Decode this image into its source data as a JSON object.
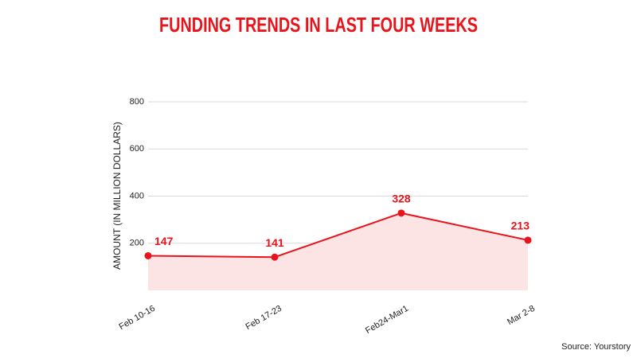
{
  "chart_data": {
    "type": "line",
    "title": "FUNDING TRENDS IN LAST FOUR WEEKS",
    "y_label": "AMOUNT (IN MILLION DOLLARS)",
    "source": "Source: Yourstory",
    "categories": [
      "Feb 10-16",
      "Feb 17-23",
      "Feb24-Mar1",
      "Mar 2-8"
    ],
    "values": [
      147,
      141,
      328,
      213
    ],
    "color": "#e8141c",
    "area_color": "#fde4e4",
    "ylim": [
      0,
      800
    ],
    "yticks": [
      200,
      400,
      600,
      800
    ],
    "grid": true
  }
}
